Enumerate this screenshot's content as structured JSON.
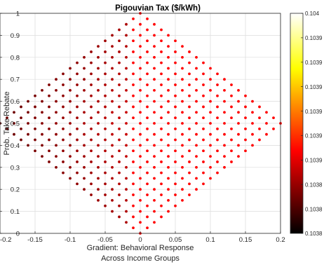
{
  "chart_data": {
    "type": "scatter",
    "title": "Pigouvian Tax ($/kWh)",
    "xlabel": [
      "Gradient: Behavioral Response",
      "Across Income Groups"
    ],
    "ylabel": "Prob. Take Rebate",
    "xlim": [
      -0.2,
      0.2
    ],
    "ylim": [
      0,
      1
    ],
    "xticks": [
      -0.2,
      -0.15,
      -0.1,
      -0.05,
      0,
      0.05,
      0.1,
      0.15,
      0.2
    ],
    "xtick_labels": [
      "-0.2",
      "-0.15",
      "-0.1",
      "-0.05",
      "0",
      "0.05",
      "0.1",
      "0.15",
      "0.2"
    ],
    "yticks": [
      0,
      0.1,
      0.2,
      0.3,
      0.4,
      0.5,
      0.6,
      0.7,
      0.8,
      0.9,
      1
    ],
    "ytick_labels": [
      "0",
      "0.1",
      "0.2",
      "0.3",
      "0.4",
      "0.5",
      "0.6",
      "0.7",
      "0.8",
      "0.9",
      "1"
    ],
    "grid": true,
    "colormap": "hot",
    "color_range": [
      0.1038,
      0.104
    ],
    "colorbar": {
      "position": "right",
      "tick_labels": [
        "0.104",
        "0.1039",
        "0.1039",
        "0.1039",
        "0.1039",
        "0.1039",
        "0.1039",
        "0.1038",
        "0.1038",
        "0.1038"
      ]
    },
    "grid_step": 0.05,
    "data_region": "diamond |x|/0.2 + |y-0.5|/0.5 <= 1 (points on 0.01 x 0.025 lattice, checkerboard)",
    "color_trend": "darker (black/dark red) on the left side, pure red on the right side"
  }
}
